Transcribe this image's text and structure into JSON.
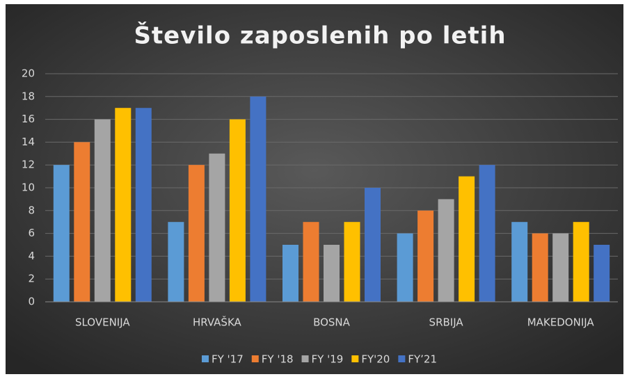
{
  "chart_data": {
    "type": "bar",
    "title": "Število zaposlenih po letih",
    "categories": [
      "SLOVENIJA",
      "HRVAŠKA",
      "BOSNA",
      "SRBIJA",
      "MAKEDONIJA"
    ],
    "series": [
      {
        "name": "FY '17",
        "color": "#5b9bd5",
        "values": [
          12,
          7,
          5,
          6,
          7
        ]
      },
      {
        "name": "FY '18",
        "color": "#ed7d31",
        "values": [
          14,
          12,
          7,
          8,
          6
        ]
      },
      {
        "name": "FY '19",
        "color": "#a5a5a5",
        "values": [
          16,
          13,
          5,
          9,
          6
        ]
      },
      {
        "name": "FY'20",
        "color": "#ffc000",
        "values": [
          17,
          16,
          7,
          11,
          7
        ]
      },
      {
        "name": "FY’21",
        "color": "#4472c4",
        "values": [
          17,
          18,
          10,
          12,
          5
        ]
      }
    ],
    "ylim": [
      0,
      20
    ],
    "yticks": [
      0,
      2,
      4,
      6,
      8,
      10,
      12,
      14,
      16,
      18,
      20
    ],
    "grid": true,
    "legend": "bottom"
  }
}
